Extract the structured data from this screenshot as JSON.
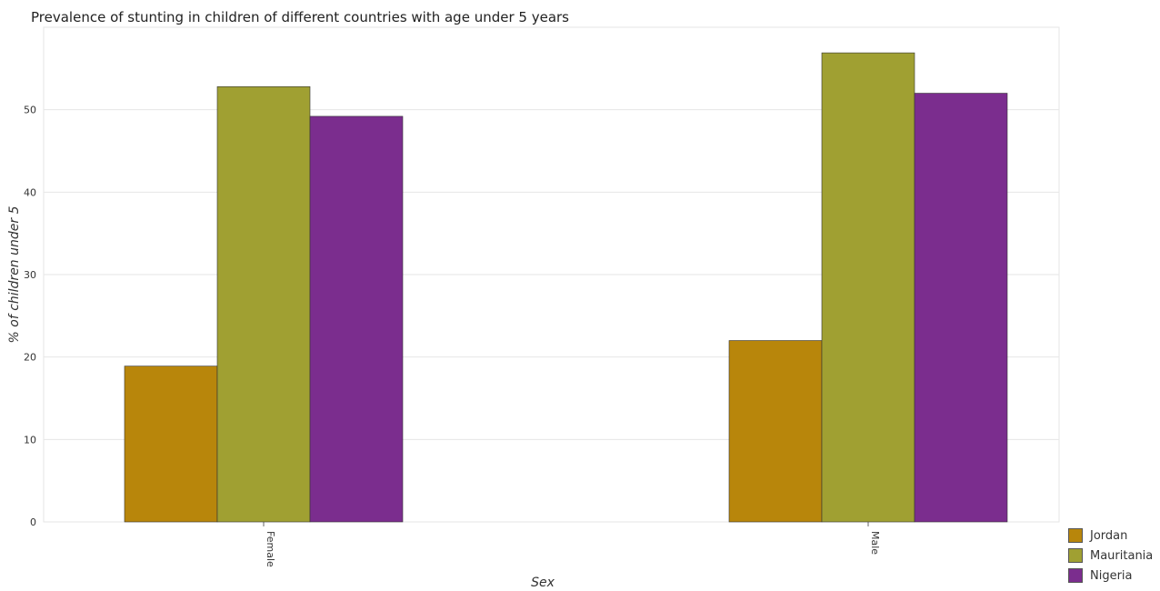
{
  "title": "Prevalence of stunting in children of different countries with age under 5 years",
  "chart_data": {
    "type": "bar",
    "categories": [
      "Female",
      "Male"
    ],
    "xlabel": "Sex",
    "ylabel": "% of children under 5",
    "ylim": [
      0,
      60
    ],
    "yticks": [
      0,
      10,
      20,
      30,
      40,
      50
    ],
    "grid": true,
    "legend_position": "bottom-right",
    "series": [
      {
        "name": "Jordan",
        "color": "#b8860b",
        "values": [
          18.9,
          22.0
        ]
      },
      {
        "name": "Mauritania",
        "color": "#a0a032",
        "values": [
          52.8,
          56.9
        ]
      },
      {
        "name": "Nigeria",
        "color": "#7b2d8e",
        "values": [
          49.2,
          52.0
        ]
      }
    ]
  }
}
